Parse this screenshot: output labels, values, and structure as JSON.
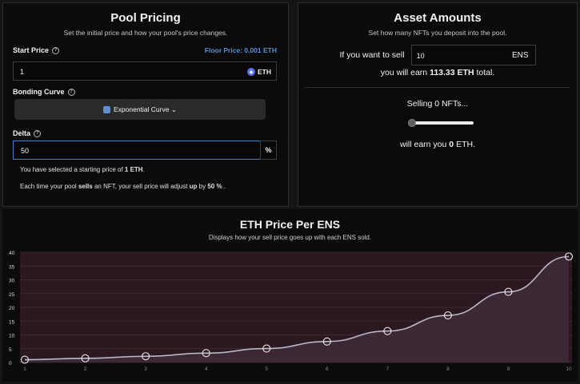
{
  "pricing": {
    "title": "Pool Pricing",
    "subtitle": "Set the initial price and how your pool's price changes.",
    "start_price_label": "Start Price",
    "floor_price": "Floor Price: 0.001 ETH",
    "start_price_value": "1",
    "eth_label": "ETH",
    "bonding_curve_label": "Bonding Curve",
    "curve_button": "Exponential Curve ⌄",
    "delta_label": "Delta",
    "delta_value": "50",
    "delta_unit": "%",
    "note1_pre": "You have selected a starting price of ",
    "note1_bold": "1 ETH",
    "note1_post": ".",
    "note2_a": "Each time your pool ",
    "note2_b": "sells",
    "note2_c": " an NFT, your sell price will adjust ",
    "note2_d": "up",
    "note2_e": " by ",
    "note2_f": "50 %",
    "note2_g": " ."
  },
  "amounts": {
    "title": "Asset Amounts",
    "subtitle": "Set how many NFTs you deposit into the pool.",
    "sell_prefix": "If you want to sell",
    "sell_value": "10",
    "sell_unit": "ENS",
    "earn_pre": "you will earn ",
    "earn_bold": "113.33 ETH",
    "earn_post": " total.",
    "selling_text": "Selling 0 NFTs...",
    "slider_value": 0,
    "earn2_pre": "will earn you ",
    "earn2_bold": "0",
    "earn2_post": " ETH."
  },
  "colors": {
    "accent_blue": "#5b8fd6",
    "chart_bg": "#2c1820",
    "line": "#b8b8c8"
  },
  "chart_data": {
    "type": "line",
    "title": "ETH Price Per ENS",
    "subtitle": "Displays how your sell price goes up with each ENS sold.",
    "x": [
      1,
      2,
      3,
      4,
      5,
      6,
      7,
      8,
      9,
      10
    ],
    "values": [
      1,
      1.5,
      2.25,
      3.38,
      5.06,
      7.59,
      11.39,
      17.09,
      25.63,
      38.44
    ],
    "y_ticks": [
      0,
      5,
      10,
      15,
      20,
      25,
      30,
      35,
      40
    ],
    "ylim": [
      0,
      40
    ],
    "xlim": [
      1,
      10
    ],
    "grid": true
  }
}
